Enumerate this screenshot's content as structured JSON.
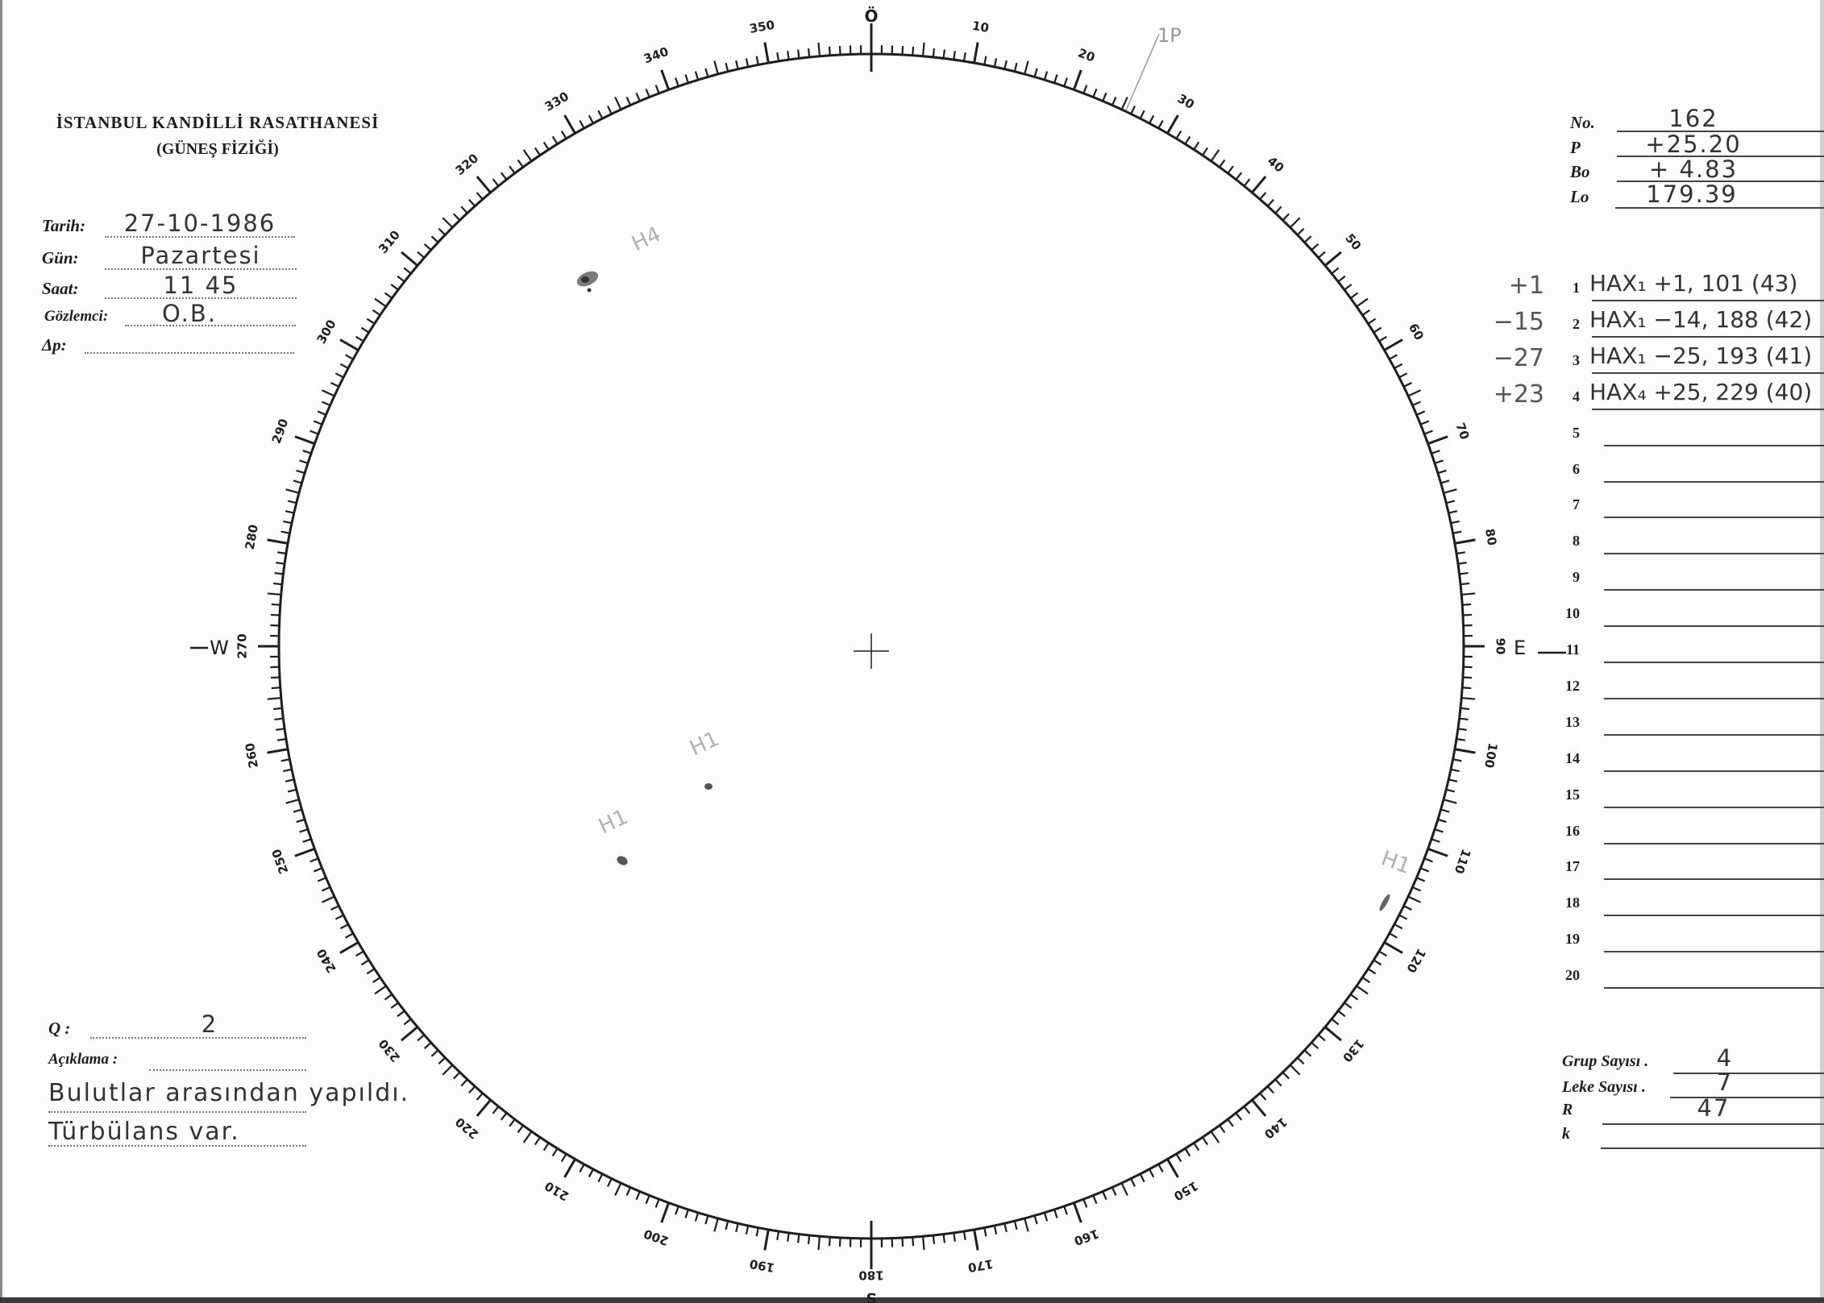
{
  "header": {
    "institution": "İSTANBUL KANDİLLİ RASATHANESİ",
    "department": "(GÜNEŞ FİZİĞİ)"
  },
  "observation": {
    "date_label": "Tarih:",
    "date_value": "27-10-1986",
    "day_label": "Gün:",
    "day_value": "Pazartesi",
    "time_label": "Saat:",
    "time_value": "11 45",
    "observer_label": "Gözlemci:",
    "observer_value": "O.B.",
    "delta_p_label": "Δp:",
    "delta_p_value": ""
  },
  "ephemeris": {
    "no_label": "No.",
    "no_value": "162",
    "p_label": "P",
    "p_value": "+25.20",
    "bo_label": "Bo",
    "bo_value": "+ 4.83",
    "lo_label": "Lo",
    "lo_value": "179.39"
  },
  "groups": [
    {
      "n": "1",
      "margin": "+1",
      "text": "HAX₁ +1, 101 (43)"
    },
    {
      "n": "2",
      "margin": "−15",
      "text": "HAX₁ −14, 188 (42)"
    },
    {
      "n": "3",
      "margin": "−27",
      "text": "HAX₁ −25, 193 (41)"
    },
    {
      "n": "4",
      "margin": "+23",
      "text": "HAX₄ +25, 229 (40)"
    },
    {
      "n": "5",
      "margin": "",
      "text": ""
    },
    {
      "n": "6",
      "margin": "",
      "text": ""
    },
    {
      "n": "7",
      "margin": "",
      "text": ""
    },
    {
      "n": "8",
      "margin": "",
      "text": ""
    },
    {
      "n": "9",
      "margin": "",
      "text": ""
    },
    {
      "n": "10",
      "margin": "",
      "text": ""
    },
    {
      "n": "11",
      "margin": "",
      "text": ""
    },
    {
      "n": "12",
      "margin": "",
      "text": ""
    },
    {
      "n": "13",
      "margin": "",
      "text": ""
    },
    {
      "n": "14",
      "margin": "",
      "text": ""
    },
    {
      "n": "15",
      "margin": "",
      "text": ""
    },
    {
      "n": "16",
      "margin": "",
      "text": ""
    },
    {
      "n": "17",
      "margin": "",
      "text": ""
    },
    {
      "n": "18",
      "margin": "",
      "text": ""
    },
    {
      "n": "19",
      "margin": "",
      "text": ""
    },
    {
      "n": "20",
      "margin": "",
      "text": ""
    }
  ],
  "quality": {
    "q_label": "Q :",
    "q_value": "2",
    "remarks_label": "Açıklama :",
    "remarks_line1": "Bulutlar arasından yapıldı.",
    "remarks_line2": "Türbülans var."
  },
  "counts": {
    "groups_label": "Grup Sayısı .",
    "groups_value": "4",
    "spots_label": "Leke Sayısı .",
    "spots_value": "7",
    "r_label": "R",
    "r_value": "47",
    "k_label": "k",
    "k_value": ""
  },
  "disk": {
    "cardinal": {
      "north": "Ö",
      "south": "S",
      "east": "E",
      "west": "W"
    },
    "scale_labels": [
      "10",
      "20",
      "30",
      "40",
      "50",
      "60",
      "70",
      "80",
      "90",
      "100",
      "110",
      "120",
      "130",
      "140",
      "150",
      "160",
      "170",
      "180",
      "190",
      "200",
      "210",
      "220",
      "230",
      "240",
      "250",
      "260",
      "270",
      "280",
      "290",
      "300",
      "310",
      "320",
      "330",
      "340",
      "350"
    ],
    "pole_marker": "1P",
    "spot_labels": [
      "H4",
      "H1",
      "H1",
      "H1"
    ],
    "ink_color": "#1e1e1e",
    "pencil_color": "#9a9a9a"
  }
}
